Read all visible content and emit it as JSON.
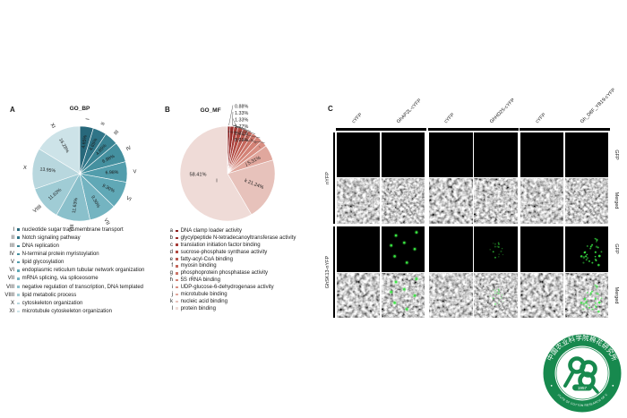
{
  "panels": {
    "a": {
      "label": "A",
      "title": "GO_BP"
    },
    "b": {
      "label": "B",
      "title": "GO_MF"
    },
    "c": {
      "label": "C"
    }
  },
  "chart_data": [
    {
      "id": "go_bp",
      "type": "pie",
      "title": "GO_BP",
      "legend_position": "below",
      "start_angle": "12-oclock-clockwise",
      "slices": [
        {
          "key": "I",
          "pct": 4.65,
          "color": "#27687b",
          "desc": "nucleotide sugar transmembrane transport"
        },
        {
          "key": "II",
          "pct": 4.65,
          "color": "#2f7487",
          "desc": "Notch signaling pathway"
        },
        {
          "key": "III",
          "pct": 4.65,
          "color": "#398393",
          "desc": "DNA replication"
        },
        {
          "key": "IV",
          "pct": 6.98,
          "color": "#44909f",
          "desc": "N-terminal protein myristoylation"
        },
        {
          "key": "V",
          "pct": 6.98,
          "color": "#529dac",
          "desc": "lipid glycosylation"
        },
        {
          "key": "VI",
          "pct": 9.3,
          "color": "#60a8b6",
          "desc": "endoplasmic reticulum tubular network organization"
        },
        {
          "key": "VII",
          "pct": 9.3,
          "color": "#74b4c1",
          "desc": "mRNA splicing, via spliceosome"
        },
        {
          "key": "VIII",
          "pct": 11.63,
          "color": "#8ac0cb",
          "desc": "negative regulation of transcription, DNA templated"
        },
        {
          "key": "VIIII",
          "pct": 11.63,
          "color": "#a0ccd5",
          "desc": "lipid metabolic process"
        },
        {
          "key": "X",
          "pct": 13.95,
          "color": "#b8d7de",
          "desc": "cytoskeleton organization"
        },
        {
          "key": "XI",
          "pct": 16.28,
          "color": "#cde3e8",
          "desc": "microtubule cytoskeleton organization"
        }
      ]
    },
    {
      "id": "go_mf",
      "type": "pie",
      "title": "GO_MF",
      "legend_position": "below",
      "start_angle": "12-oclock-clockwise",
      "slices": [
        {
          "key": "a",
          "pct": 0.88,
          "color": "#8c1f1f",
          "desc": "DNA clamp loader activity"
        },
        {
          "key": "b",
          "pct": 1.33,
          "color": "#992d2a",
          "desc": "glycylpeptide N-tetradecanoyltransferase activity"
        },
        {
          "key": "c",
          "pct": 1.33,
          "color": "#a63b36",
          "desc": "translation initiation factor binding"
        },
        {
          "key": "d",
          "pct": 1.77,
          "color": "#b14a42",
          "desc": "sucrose-phosphate synthase activity"
        },
        {
          "key": "e",
          "pct": 1.77,
          "color": "#bb584e",
          "desc": "fatty-acyl-CoA binding"
        },
        {
          "key": "f",
          "pct": 1.77,
          "color": "#c4665b",
          "desc": "myosin binding"
        },
        {
          "key": "g",
          "pct": 1.77,
          "color": "#cc7468",
          "desc": "phosphoprotein phosphatase activity"
        },
        {
          "key": "h",
          "pct": 2.21,
          "color": "#d38276",
          "desc": "5S rRNA binding"
        },
        {
          "key": "i",
          "pct": 2.21,
          "color": "#d99084",
          "desc": "UDP-glucose-6-dehydrogenase activity"
        },
        {
          "key": "j",
          "pct": 5.31,
          "color": "#e0a79d",
          "desc": "microtubule binding"
        },
        {
          "key": "k",
          "pct": 21.24,
          "color": "#e7c2bb",
          "desc": "nucleic acid binding"
        },
        {
          "key": "l",
          "pct": 58.41,
          "color": "#efdbd7",
          "desc": "protein binding"
        }
      ],
      "callouts": [
        {
          "text": "0.88%",
          "targets": [
            "a"
          ]
        },
        {
          "text": "1.33%",
          "targets": [
            "b"
          ]
        },
        {
          "text": "1.33%",
          "targets": [
            "c"
          ]
        },
        {
          "text": "1.77%",
          "targets": [
            "d",
            "e",
            "f",
            "g"
          ]
        },
        {
          "text": "2.21%",
          "targets": [
            "h"
          ]
        },
        {
          "text": "2.21%",
          "targets": [
            "i"
          ]
        }
      ]
    }
  ],
  "panel_c": {
    "column_labels": [
      "cYFP",
      "GhAP2L-cYFP",
      "cYFP",
      "GhHD25-cYFP",
      "cYFP",
      "Gh_D8F_YB19-cYFP"
    ],
    "left_group_labels": [
      "nYFP",
      "GhSK13-nYFP"
    ],
    "right_row_labels": [
      "GFP",
      "Merged",
      "GFP",
      "Merged"
    ],
    "fluorescence_color": "#39e642",
    "rows": [
      {
        "type": "gfp",
        "cells": [
          "black",
          "black",
          "black",
          "black",
          "black",
          "black"
        ]
      },
      {
        "type": "merged",
        "cells": [
          "noise",
          "noise",
          "noise",
          "noise",
          "noise",
          "noise"
        ]
      },
      {
        "type": "gfp",
        "cells": [
          "black",
          "dots",
          "black",
          "speckle",
          "black",
          "cluster"
        ]
      },
      {
        "type": "merged",
        "cells": [
          "noise",
          "noise-dots",
          "noise",
          "noise-speckle",
          "noise",
          "noise-cluster"
        ]
      }
    ]
  },
  "logo": {
    "color": "#17894e",
    "ring_text_top": "中国农业科学院棉花研究所",
    "ring_text_bottom": "INSTITUTE OF COTTON RESEARCH OF CAAS",
    "year": "1957"
  }
}
